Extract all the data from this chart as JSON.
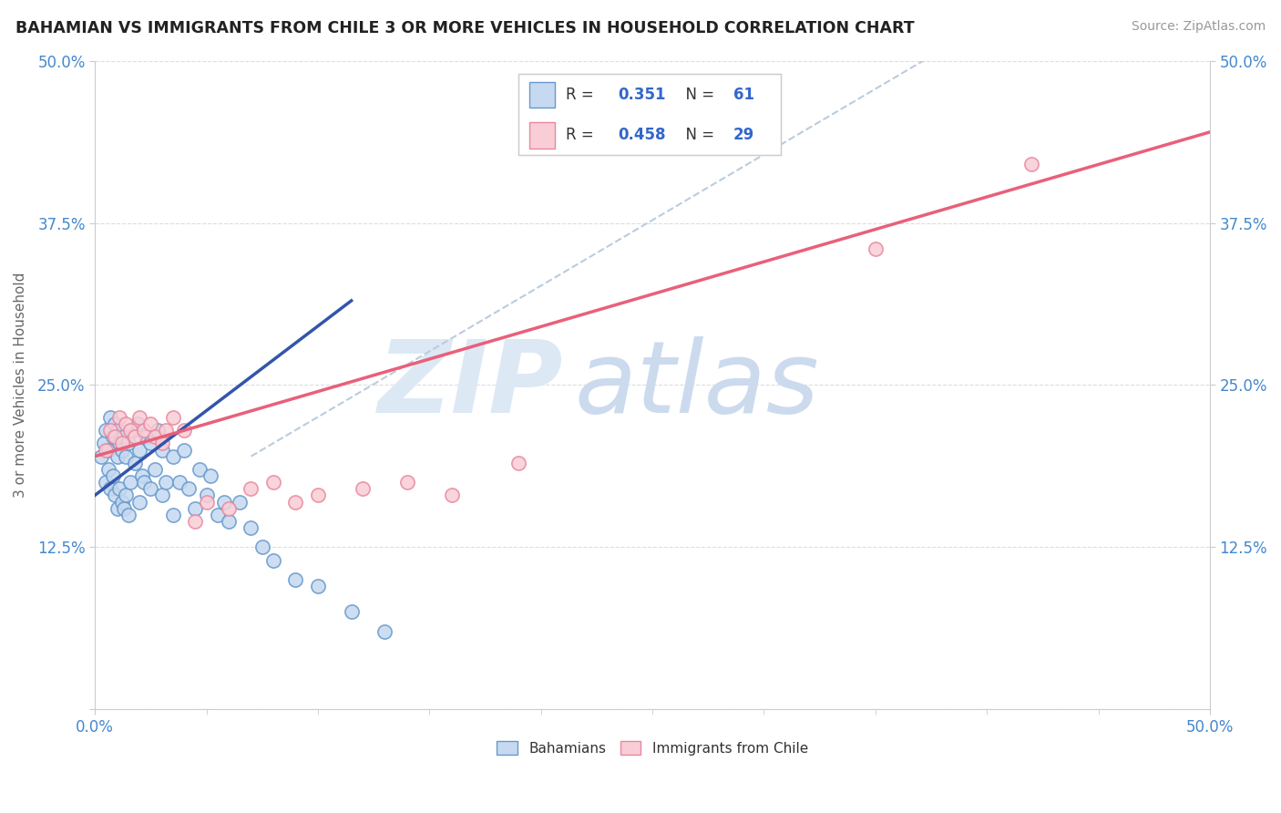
{
  "title": "BAHAMIAN VS IMMIGRANTS FROM CHILE 3 OR MORE VEHICLES IN HOUSEHOLD CORRELATION CHART",
  "source": "Source: ZipAtlas.com",
  "ylabel": "3 or more Vehicles in Household",
  "ytick_vals": [
    0.0,
    0.125,
    0.25,
    0.375,
    0.5
  ],
  "ytick_labels": [
    "",
    "12.5%",
    "25.0%",
    "37.5%",
    "50.0%"
  ],
  "xtick_labels": [
    "0.0%",
    "50.0%"
  ],
  "xrange": [
    0.0,
    0.5
  ],
  "yrange": [
    0.0,
    0.5
  ],
  "bahamians_R": 0.351,
  "bahamians_N": 61,
  "chile_R": 0.458,
  "chile_N": 29,
  "blue_face_color": "#c6d9f0",
  "blue_edge_color": "#6699cc",
  "pink_face_color": "#f9cdd5",
  "pink_edge_color": "#e888a0",
  "blue_line_color": "#3355aa",
  "pink_line_color": "#e8607a",
  "dash_line_color": "#bbccdd",
  "legend_R_color": "#3366cc",
  "tick_label_color": "#4488cc",
  "ylabel_color": "#666666",
  "watermark_zip_color": "#dde8f5",
  "watermark_atlas_color": "#ccdaee",
  "grid_color": "#dddddd",
  "blue_line_x0": 0.0,
  "blue_line_y0": 0.165,
  "blue_line_x1": 0.115,
  "blue_line_y1": 0.315,
  "pink_line_x0": 0.0,
  "pink_line_y0": 0.195,
  "pink_line_x1": 0.5,
  "pink_line_y1": 0.445,
  "bahamians_x": [
    0.003,
    0.004,
    0.005,
    0.005,
    0.006,
    0.006,
    0.007,
    0.007,
    0.008,
    0.008,
    0.009,
    0.009,
    0.01,
    0.01,
    0.01,
    0.011,
    0.011,
    0.012,
    0.012,
    0.013,
    0.013,
    0.014,
    0.014,
    0.015,
    0.015,
    0.016,
    0.017,
    0.018,
    0.019,
    0.02,
    0.02,
    0.021,
    0.022,
    0.023,
    0.025,
    0.025,
    0.027,
    0.028,
    0.03,
    0.03,
    0.032,
    0.035,
    0.035,
    0.038,
    0.04,
    0.042,
    0.045,
    0.047,
    0.05,
    0.052,
    0.055,
    0.058,
    0.06,
    0.065,
    0.07,
    0.075,
    0.08,
    0.09,
    0.1,
    0.115,
    0.13
  ],
  "bahamians_y": [
    0.195,
    0.205,
    0.175,
    0.215,
    0.185,
    0.2,
    0.17,
    0.225,
    0.18,
    0.21,
    0.165,
    0.22,
    0.155,
    0.195,
    0.215,
    0.17,
    0.205,
    0.16,
    0.2,
    0.155,
    0.21,
    0.165,
    0.195,
    0.15,
    0.205,
    0.175,
    0.215,
    0.19,
    0.22,
    0.16,
    0.2,
    0.18,
    0.175,
    0.21,
    0.17,
    0.205,
    0.185,
    0.215,
    0.165,
    0.2,
    0.175,
    0.15,
    0.195,
    0.175,
    0.2,
    0.17,
    0.155,
    0.185,
    0.165,
    0.18,
    0.15,
    0.16,
    0.145,
    0.16,
    0.14,
    0.125,
    0.115,
    0.1,
    0.095,
    0.075,
    0.06
  ],
  "chile_x": [
    0.005,
    0.007,
    0.009,
    0.011,
    0.012,
    0.014,
    0.016,
    0.018,
    0.02,
    0.022,
    0.025,
    0.027,
    0.03,
    0.032,
    0.035,
    0.04,
    0.045,
    0.05,
    0.06,
    0.07,
    0.08,
    0.09,
    0.1,
    0.12,
    0.14,
    0.16,
    0.19,
    0.35,
    0.42
  ],
  "chile_y": [
    0.2,
    0.215,
    0.21,
    0.225,
    0.205,
    0.22,
    0.215,
    0.21,
    0.225,
    0.215,
    0.22,
    0.21,
    0.205,
    0.215,
    0.225,
    0.215,
    0.145,
    0.16,
    0.155,
    0.17,
    0.175,
    0.16,
    0.165,
    0.17,
    0.175,
    0.165,
    0.19,
    0.355,
    0.42
  ]
}
